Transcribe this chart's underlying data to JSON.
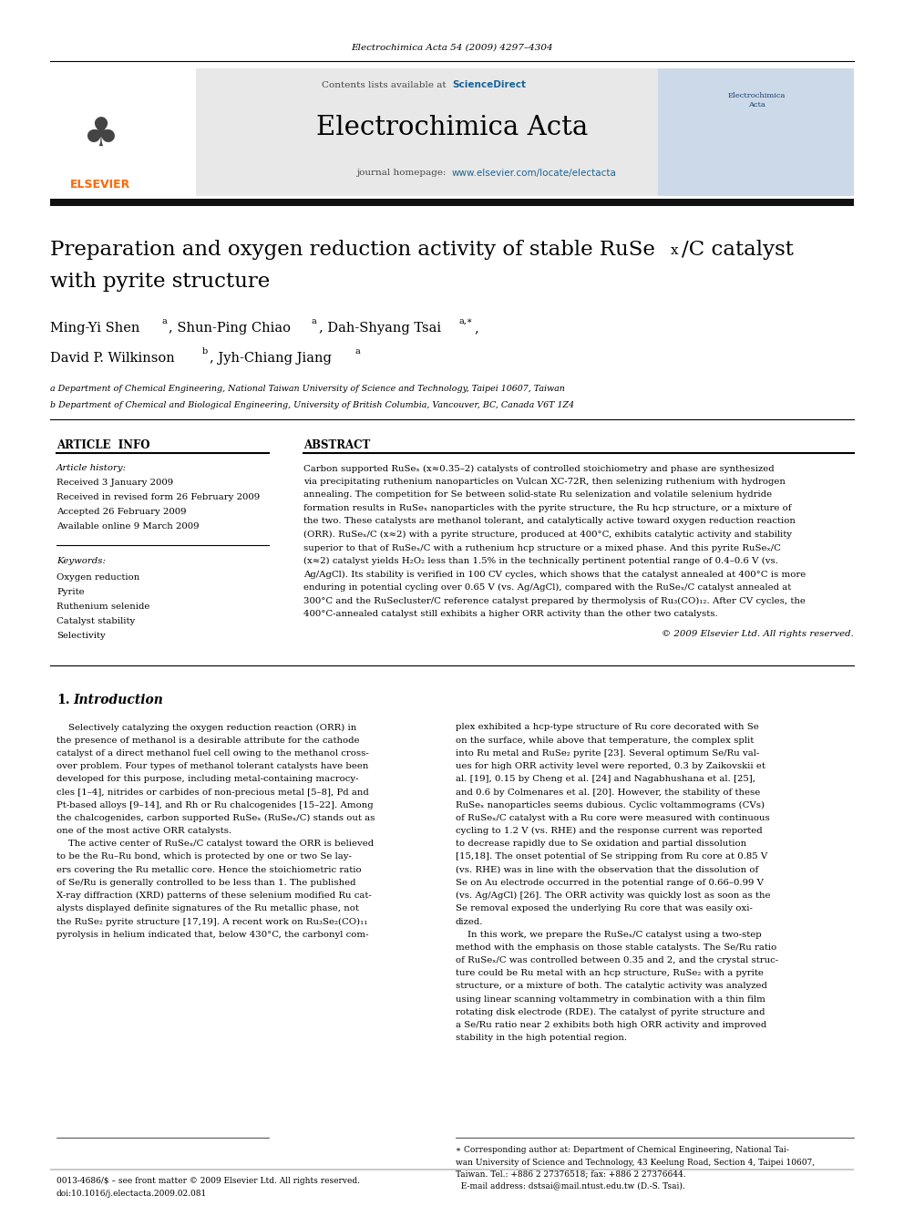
{
  "page_width": 9.92,
  "page_height": 13.23,
  "background_color": "#ffffff",
  "header_journal_ref": "Electrochimica Acta 54 (2009) 4297–4304",
  "journal_name": "Electrochimica Acta",
  "contents_text": "Contents lists available at ScienceDirect",
  "journal_homepage": "journal homepage: www.elsevier.com/locate/electacta",
  "sciencedirect_color": "#1a6496",
  "homepage_color": "#1a6496",
  "article_title_line1": "Preparation and oxygen reduction activity of stable RuSe",
  "article_title_sub": "x",
  "article_title_line1b": "/C catalyst",
  "article_title_line2": "with pyrite structure",
  "affil_a": "a Department of Chemical Engineering, National Taiwan University of Science and Technology, Taipei 10607, Taiwan",
  "affil_b": "b Department of Chemical and Biological Engineering, University of British Columbia, Vancouver, BC, Canada V6T 1Z4",
  "article_info_header": "ARTICLE INFO",
  "abstract_header": "ABSTRACT",
  "article_history_title": "Article history:",
  "received": "Received 3 January 2009",
  "received_revised": "Received in revised form 26 February 2009",
  "accepted": "Accepted 26 February 2009",
  "available_online": "Available online 9 March 2009",
  "keywords_title": "Keywords:",
  "keywords": [
    "Oxygen reduction",
    "Pyrite",
    "Ruthenium selenide",
    "Catalyst stability",
    "Selectivity"
  ],
  "copyright": "© 2009 Elsevier Ltd. All rights reserved.",
  "elsevier_orange": "#ff6600"
}
